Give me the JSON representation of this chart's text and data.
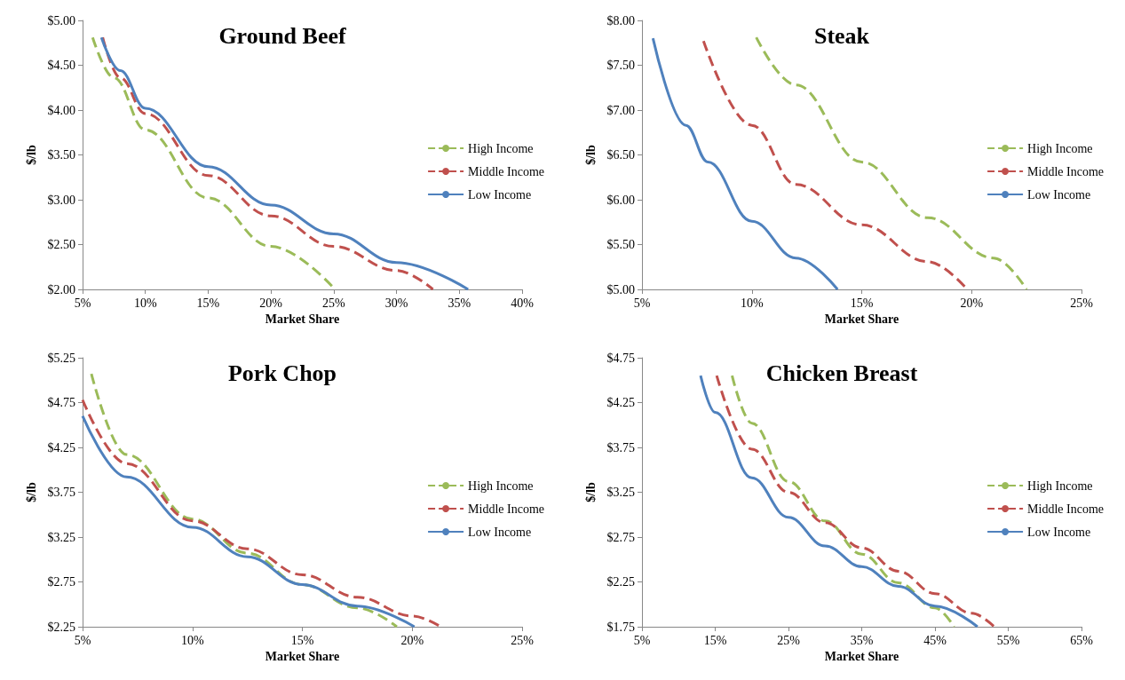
{
  "chart_data": [
    {
      "type": "line",
      "title": "Ground Beef",
      "xlabel": "Market Share",
      "ylabel": "$/lb",
      "xlim": [
        5,
        40
      ],
      "xticks": [
        {
          "value": 5,
          "label": "5%"
        },
        {
          "value": 10,
          "label": "10%"
        },
        {
          "value": 15,
          "label": "15%"
        },
        {
          "value": 20,
          "label": "20%"
        },
        {
          "value": 25,
          "label": "25%"
        },
        {
          "value": 30,
          "label": "30%"
        },
        {
          "value": 35,
          "label": "35%"
        },
        {
          "value": 40,
          "label": "40%"
        }
      ],
      "ylim": [
        2,
        5
      ],
      "yticks": [
        {
          "value": 2,
          "label": "$2.00"
        },
        {
          "value": 2.5,
          "label": "$2.50"
        },
        {
          "value": 3,
          "label": "$3.00"
        },
        {
          "value": 3.5,
          "label": "$3.50"
        },
        {
          "value": 4,
          "label": "$4.00"
        },
        {
          "value": 4.5,
          "label": "$4.50"
        },
        {
          "value": 5,
          "label": "$5.00"
        }
      ],
      "grid": false,
      "legend": "right",
      "marker": "none",
      "series": [
        {
          "name": "High Income",
          "color": "#9bbb59",
          "line_style": "dashed",
          "x": [
            5.8,
            7.5,
            10,
            15,
            20,
            25.1
          ],
          "values": [
            4.81,
            4.36,
            3.78,
            3.02,
            2.48,
            2.0
          ]
        },
        {
          "name": "Middle Income",
          "color": "#c0504d",
          "line_style": "dashed",
          "x": [
            6.6,
            8,
            10,
            15,
            20,
            25,
            30,
            32.9
          ],
          "values": [
            4.81,
            4.36,
            3.96,
            3.27,
            2.82,
            2.48,
            2.21,
            2.0
          ]
        },
        {
          "name": "Low Income",
          "color": "#4f81bd",
          "line_style": "solid",
          "x": [
            6.5,
            8,
            10,
            15,
            20,
            25,
            30,
            35.7
          ],
          "values": [
            4.81,
            4.44,
            4.02,
            3.37,
            2.94,
            2.62,
            2.3,
            2.0
          ]
        }
      ]
    },
    {
      "type": "line",
      "title": "Steak",
      "xlabel": "Market Share",
      "ylabel": "$/lb",
      "xlim": [
        5,
        25
      ],
      "xticks": [
        {
          "value": 5,
          "label": "5%"
        },
        {
          "value": 10,
          "label": "10%"
        },
        {
          "value": 15,
          "label": "15%"
        },
        {
          "value": 20,
          "label": "20%"
        },
        {
          "value": 25,
          "label": "25%"
        }
      ],
      "ylim": [
        5,
        8
      ],
      "yticks": [
        {
          "value": 5,
          "label": "$5.00"
        },
        {
          "value": 5.5,
          "label": "$5.50"
        },
        {
          "value": 6,
          "label": "$6.00"
        },
        {
          "value": 6.5,
          "label": "$6.50"
        },
        {
          "value": 7,
          "label": "$7.00"
        },
        {
          "value": 7.5,
          "label": "$7.50"
        },
        {
          "value": 8,
          "label": "$8.00"
        }
      ],
      "grid": false,
      "legend": "right",
      "marker": "none",
      "series": [
        {
          "name": "High Income",
          "color": "#9bbb59",
          "line_style": "dashed",
          "x": [
            10.2,
            12,
            15,
            18,
            21,
            22.5
          ],
          "values": [
            7.81,
            7.28,
            6.42,
            5.8,
            5.35,
            5.0
          ]
        },
        {
          "name": "Middle Income",
          "color": "#c0504d",
          "line_style": "dashed",
          "x": [
            7.8,
            10,
            12,
            15,
            18,
            19.8
          ],
          "values": [
            7.77,
            6.83,
            6.17,
            5.72,
            5.31,
            5.0
          ]
        },
        {
          "name": "Low Income",
          "color": "#4f81bd",
          "line_style": "solid",
          "x": [
            5.5,
            7,
            8,
            10,
            12,
            13.9
          ],
          "values": [
            7.8,
            6.83,
            6.42,
            5.76,
            5.35,
            5.0
          ]
        }
      ]
    },
    {
      "type": "line",
      "title": "Pork Chop",
      "xlabel": "Market Share",
      "ylabel": "$/lb",
      "xlim": [
        5,
        25
      ],
      "xticks": [
        {
          "value": 5,
          "label": "5%"
        },
        {
          "value": 10,
          "label": "10%"
        },
        {
          "value": 15,
          "label": "15%"
        },
        {
          "value": 20,
          "label": "20%"
        },
        {
          "value": 25,
          "label": "25%"
        }
      ],
      "ylim": [
        2.25,
        5.25
      ],
      "yticks": [
        {
          "value": 2.25,
          "label": "$2.25"
        },
        {
          "value": 2.75,
          "label": "$2.75"
        },
        {
          "value": 3.25,
          "label": "$3.25"
        },
        {
          "value": 3.75,
          "label": "$3.75"
        },
        {
          "value": 4.25,
          "label": "$4.25"
        },
        {
          "value": 4.75,
          "label": "$4.75"
        },
        {
          "value": 5.25,
          "label": "$5.25"
        }
      ],
      "grid": false,
      "legend": "right",
      "marker": "none",
      "series": [
        {
          "name": "High Income",
          "color": "#9bbb59",
          "line_style": "dashed",
          "x": [
            5.4,
            7,
            10,
            12.5,
            15,
            17.5,
            19.3
          ],
          "values": [
            5.07,
            4.17,
            3.45,
            3.07,
            2.72,
            2.46,
            2.25
          ]
        },
        {
          "name": "Middle Income",
          "color": "#c0504d",
          "line_style": "dashed",
          "x": [
            5,
            7,
            10,
            12.5,
            15,
            17.5,
            20,
            21.3
          ],
          "values": [
            4.78,
            4.07,
            3.43,
            3.12,
            2.83,
            2.58,
            2.37,
            2.25
          ]
        },
        {
          "name": "Low Income",
          "color": "#4f81bd",
          "line_style": "solid",
          "x": [
            5,
            7,
            10,
            12.5,
            15,
            17.5,
            20.1
          ],
          "values": [
            4.6,
            3.92,
            3.36,
            3.03,
            2.72,
            2.48,
            2.25
          ]
        }
      ]
    },
    {
      "type": "line",
      "title": "Chicken Breast",
      "xlabel": "Market Share",
      "ylabel": "$/lb",
      "xlim": [
        5,
        65
      ],
      "xticks": [
        {
          "value": 5,
          "label": "5%"
        },
        {
          "value": 15,
          "label": "15%"
        },
        {
          "value": 25,
          "label": "25%"
        },
        {
          "value": 35,
          "label": "35%"
        },
        {
          "value": 45,
          "label": "45%"
        },
        {
          "value": 55,
          "label": "55%"
        },
        {
          "value": 65,
          "label": "65%"
        }
      ],
      "ylim": [
        1.75,
        4.75
      ],
      "yticks": [
        {
          "value": 1.75,
          "label": "$1.75"
        },
        {
          "value": 2.25,
          "label": "$2.25"
        },
        {
          "value": 2.75,
          "label": "$2.75"
        },
        {
          "value": 3.25,
          "label": "$3.25"
        },
        {
          "value": 3.75,
          "label": "$3.75"
        },
        {
          "value": 4.25,
          "label": "$4.25"
        },
        {
          "value": 4.75,
          "label": "$4.75"
        }
      ],
      "grid": false,
      "legend": "right",
      "marker": "none",
      "series": [
        {
          "name": "High Income",
          "color": "#9bbb59",
          "line_style": "dashed",
          "x": [
            17.3,
            20,
            25,
            30,
            35,
            40,
            45,
            47.6
          ],
          "values": [
            4.55,
            4.02,
            3.37,
            2.93,
            2.56,
            2.24,
            1.96,
            1.75
          ]
        },
        {
          "name": "Middle Income",
          "color": "#c0504d",
          "line_style": "dashed",
          "x": [
            15.2,
            20,
            25,
            30,
            35,
            40,
            45,
            50,
            53.1
          ],
          "values": [
            4.55,
            3.73,
            3.25,
            2.91,
            2.63,
            2.37,
            2.12,
            1.9,
            1.75
          ]
        },
        {
          "name": "Low Income",
          "color": "#4f81bd",
          "line_style": "solid",
          "x": [
            13,
            15,
            20,
            25,
            30,
            35,
            40,
            45,
            50.8
          ],
          "values": [
            4.55,
            4.14,
            3.41,
            2.97,
            2.65,
            2.42,
            2.2,
            1.98,
            1.75
          ]
        }
      ]
    }
  ]
}
